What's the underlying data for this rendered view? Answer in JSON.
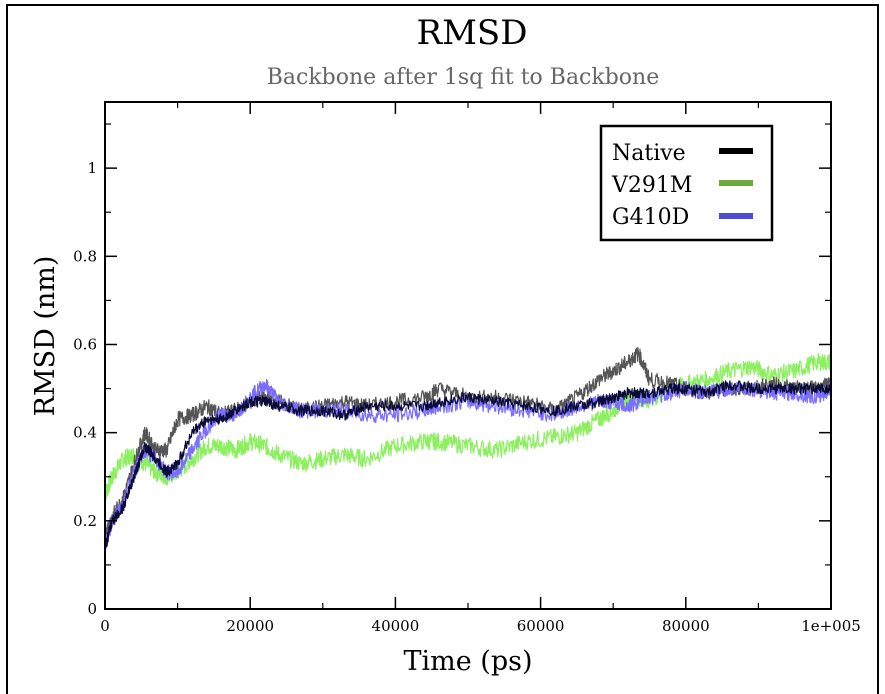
{
  "chart_data": {
    "type": "line",
    "title": "RMSD",
    "subtitle": "Backbone after 1sq fit to Backbone",
    "xlabel": "Time (ps)",
    "ylabel": "RMSD (nm)",
    "xlim": [
      0,
      100000
    ],
    "ylim": [
      0,
      1.15
    ],
    "x_ticks": [
      0,
      20000,
      40000,
      60000,
      80000,
      100000
    ],
    "x_tick_labels": [
      "0",
      "20000",
      "40000",
      "60000",
      "80000",
      "1e+005"
    ],
    "y_ticks": [
      0,
      0.2,
      0.4,
      0.6,
      0.8,
      1
    ],
    "y_tick_labels": [
      "0",
      "0.2",
      "0.4",
      "0.6",
      "0.8",
      "1"
    ],
    "grid": false,
    "legend_position": "top-right",
    "x": [
      0,
      1000,
      2500,
      4000,
      5500,
      7000,
      8500,
      10000,
      12000,
      14000,
      16000,
      18000,
      20000,
      22000,
      24000,
      27000,
      30000,
      33000,
      36000,
      40000,
      44000,
      46000,
      50000,
      54000,
      58000,
      62000,
      65000,
      68000,
      70000,
      72000,
      73500,
      75000,
      78000,
      80000,
      83000,
      86000,
      89000,
      92000,
      95000,
      98000,
      100000
    ],
    "series": [
      {
        "name": "Native",
        "color": "#000000",
        "shadow_color": "#555555",
        "shadow_values": [
          0.16,
          0.21,
          0.25,
          0.33,
          0.4,
          0.36,
          0.36,
          0.43,
          0.44,
          0.46,
          0.44,
          0.45,
          0.47,
          0.48,
          0.47,
          0.45,
          0.46,
          0.47,
          0.46,
          0.47,
          0.48,
          0.5,
          0.48,
          0.48,
          0.47,
          0.45,
          0.48,
          0.52,
          0.54,
          0.56,
          0.58,
          0.52,
          0.51,
          0.5,
          0.49,
          0.5,
          0.5,
          0.51,
          0.5,
          0.5,
          0.51
        ],
        "values": [
          0.14,
          0.2,
          0.23,
          0.3,
          0.37,
          0.34,
          0.31,
          0.33,
          0.4,
          0.43,
          0.43,
          0.45,
          0.47,
          0.47,
          0.46,
          0.45,
          0.45,
          0.44,
          0.46,
          0.46,
          0.46,
          0.47,
          0.48,
          0.47,
          0.46,
          0.45,
          0.46,
          0.47,
          0.48,
          0.49,
          0.49,
          0.49,
          0.5,
          0.5,
          0.49,
          0.51,
          0.5,
          0.5,
          0.5,
          0.5,
          0.5
        ]
      },
      {
        "name": "V291M",
        "color": "#6fa83a",
        "shadow_color": "#8bef5f",
        "values": [
          0.26,
          0.3,
          0.34,
          0.35,
          0.33,
          0.31,
          0.3,
          0.31,
          0.34,
          0.37,
          0.37,
          0.36,
          0.38,
          0.37,
          0.35,
          0.33,
          0.34,
          0.35,
          0.34,
          0.37,
          0.38,
          0.38,
          0.37,
          0.36,
          0.38,
          0.39,
          0.4,
          0.43,
          0.45,
          0.48,
          0.48,
          0.47,
          0.5,
          0.51,
          0.52,
          0.54,
          0.55,
          0.53,
          0.54,
          0.56,
          0.56
        ]
      },
      {
        "name": "G410D",
        "color": "#4b4bd6",
        "shadow_color": "#7a6dff",
        "values": [
          0.14,
          0.2,
          0.24,
          0.31,
          0.36,
          0.34,
          0.31,
          0.31,
          0.36,
          0.41,
          0.44,
          0.44,
          0.48,
          0.51,
          0.47,
          0.45,
          0.45,
          0.45,
          0.44,
          0.44,
          0.45,
          0.46,
          0.47,
          0.46,
          0.45,
          0.44,
          0.46,
          0.47,
          0.47,
          0.46,
          0.47,
          0.48,
          0.49,
          0.5,
          0.49,
          0.5,
          0.5,
          0.49,
          0.49,
          0.48,
          0.5
        ]
      }
    ]
  }
}
